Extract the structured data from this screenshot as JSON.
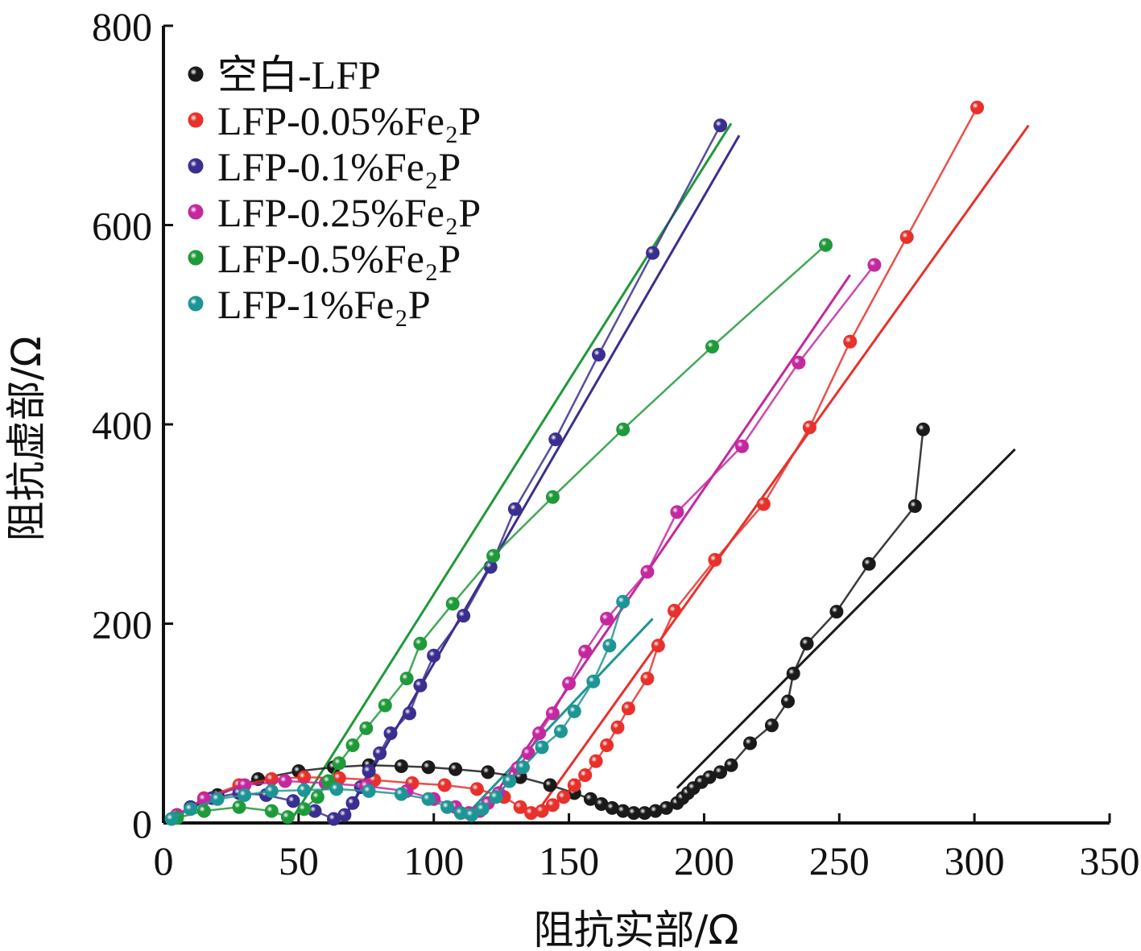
{
  "chart_data": {
    "type": "scatter",
    "xlabel": "阻抗实部/Ω",
    "ylabel": "阻抗虚部/Ω",
    "xlim": [
      0,
      350
    ],
    "ylim": [
      0,
      800
    ],
    "x_ticks": [
      "0",
      "50",
      "100",
      "150",
      "200",
      "250",
      "300",
      "350"
    ],
    "y_ticks": [
      "0",
      "200",
      "400",
      "600",
      "800"
    ],
    "grid": false,
    "legend_position": "top-left",
    "series": [
      {
        "name": "空白-LFP",
        "color": "#1a1a1a",
        "x": [
          5,
          20,
          35,
          50,
          63,
          76,
          88,
          98,
          108,
          120,
          132,
          143,
          152,
          158,
          162,
          166,
          170,
          174,
          178,
          182,
          186,
          190,
          192,
          194,
          196,
          199,
          202,
          206,
          210,
          217,
          225,
          231,
          233,
          238,
          249,
          261,
          278,
          281
        ],
        "y": [
          8,
          28,
          44,
          52,
          56,
          58,
          57,
          56,
          54,
          51,
          46,
          38,
          30,
          24,
          19,
          15,
          12,
          10,
          10,
          12,
          15,
          20,
          25,
          30,
          35,
          41,
          46,
          51,
          58,
          80,
          98,
          122,
          150,
          180,
          212,
          260,
          318,
          395
        ],
        "fit": {
          "x": [
            190,
            315
          ],
          "y": [
            35,
            375
          ]
        }
      },
      {
        "name": "LFP-0.05%Fe₂P",
        "color": "#e8312b",
        "x": [
          5,
          15,
          28,
          40,
          52,
          65,
          78,
          92,
          104,
          116,
          126,
          132,
          136,
          140,
          144,
          148,
          152,
          156,
          160,
          164,
          168,
          172,
          179,
          183,
          189,
          204,
          222,
          239,
          254,
          275,
          301
        ],
        "y": [
          8,
          25,
          38,
          44,
          46,
          45,
          43,
          40,
          38,
          34,
          26,
          16,
          10,
          12,
          18,
          26,
          38,
          48,
          62,
          78,
          96,
          115,
          145,
          178,
          213,
          264,
          320,
          397,
          483,
          588,
          718
        ],
        "fit": {
          "x": [
            138,
            320
          ],
          "y": [
            10,
            700
          ]
        }
      },
      {
        "name": "LFP-0.1%Fe₂P",
        "color": "#3a2f8f",
        "x": [
          3,
          10,
          18,
          28,
          38,
          48,
          56,
          63,
          67,
          70,
          73,
          76,
          80,
          84,
          91,
          95,
          100,
          111,
          121,
          130,
          145,
          161,
          181,
          206
        ],
        "y": [
          4,
          16,
          25,
          30,
          28,
          22,
          12,
          4,
          8,
          20,
          36,
          52,
          70,
          90,
          110,
          138,
          168,
          208,
          257,
          315,
          385,
          470,
          572,
          700
        ],
        "fit": {
          "x": [
            68,
            213
          ],
          "y": [
            10,
            690
          ]
        }
      },
      {
        "name": "LFP-0.25%Fe₂P",
        "color": "#c4289f",
        "x": [
          5,
          15,
          30,
          45,
          60,
          75,
          90,
          100,
          108,
          113,
          117,
          120,
          124,
          128,
          131,
          135,
          139,
          144,
          150,
          156,
          164,
          179,
          190,
          214,
          235,
          263
        ],
        "y": [
          8,
          24,
          38,
          42,
          40,
          37,
          32,
          24,
          16,
          10,
          12,
          20,
          30,
          42,
          55,
          70,
          90,
          110,
          140,
          172,
          205,
          252,
          312,
          378,
          462,
          560
        ],
        "fit": {
          "x": [
            118,
            254
          ],
          "y": [
            10,
            550
          ]
        }
      },
      {
        "name": "LFP-0.5%Fe₂P",
        "color": "#1f9a3a",
        "x": [
          5,
          15,
          28,
          40,
          46,
          52,
          57,
          61,
          65,
          70,
          75,
          82,
          90,
          95,
          107,
          122,
          144,
          170,
          203,
          245
        ],
        "y": [
          5,
          12,
          16,
          12,
          6,
          14,
          26,
          42,
          60,
          78,
          95,
          118,
          145,
          180,
          220,
          268,
          327,
          395,
          478,
          580
        ],
        "fit": {
          "x": [
            48,
            210
          ],
          "y": [
            6,
            702
          ]
        }
      },
      {
        "name": "LFP-1%Fe₂P",
        "color": "#1e9595",
        "x": [
          3,
          10,
          20,
          30,
          40,
          52,
          64,
          76,
          88,
          98,
          105,
          110,
          114,
          118,
          123,
          128,
          133,
          140,
          147,
          152,
          159,
          165,
          170
        ],
        "y": [
          4,
          14,
          24,
          28,
          32,
          33,
          34,
          32,
          29,
          24,
          16,
          10,
          8,
          14,
          26,
          42,
          56,
          76,
          92,
          112,
          142,
          178,
          222
        ],
        "fit": {
          "x": [
            112,
            181
          ],
          "y": [
            8,
            205
          ]
        }
      }
    ]
  }
}
